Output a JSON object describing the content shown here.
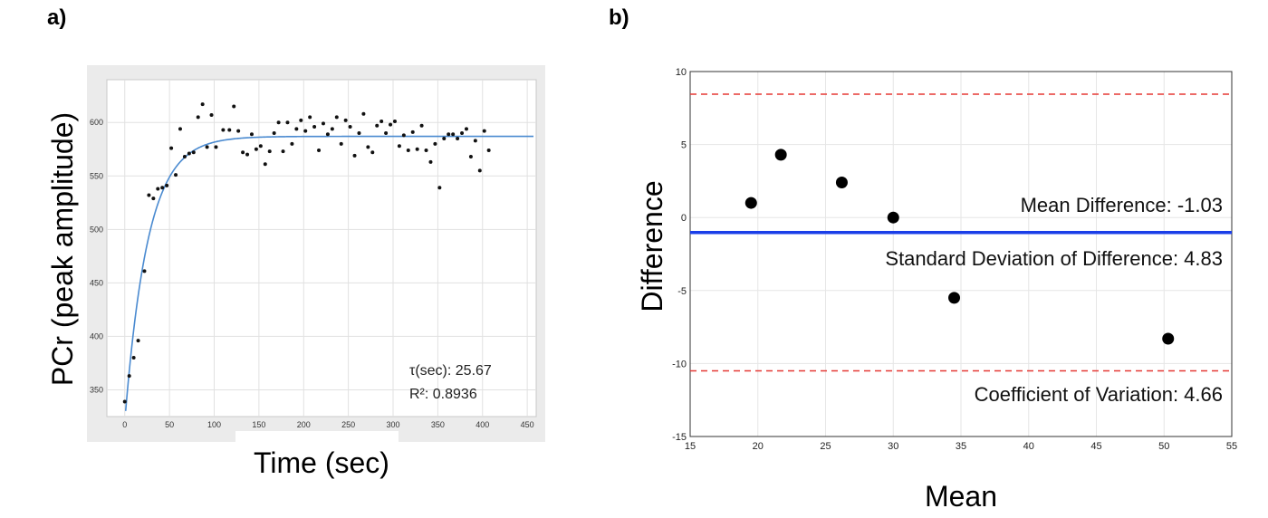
{
  "chart_data": [
    {
      "panel_label": "a)",
      "type": "scatter",
      "xlabel": "Time (sec)",
      "ylabel": "PCr (peak amplitude)",
      "xlim": [
        -20,
        460
      ],
      "ylim": [
        325,
        640
      ],
      "x_ticks": [
        "0",
        "50",
        "100",
        "150",
        "200",
        "250",
        "300",
        "350",
        "400",
        "450"
      ],
      "y_ticks": [
        "350",
        "400",
        "450",
        "500",
        "550",
        "600"
      ],
      "grid": true,
      "annotations": {
        "tau": "τ(sec): 25.67",
        "r2": "R²: 0.8936"
      },
      "fit_params": {
        "A0": 320,
        "Ainf": 587,
        "tau": 25.67
      },
      "points": [
        [
          0,
          339
        ],
        [
          5,
          363
        ],
        [
          10,
          380
        ],
        [
          15,
          396
        ],
        [
          22,
          461
        ],
        [
          27,
          532
        ],
        [
          32,
          529
        ],
        [
          37,
          538
        ],
        [
          42,
          539
        ],
        [
          47,
          541
        ],
        [
          52,
          576
        ],
        [
          57,
          551
        ],
        [
          62,
          594
        ],
        [
          67,
          568
        ],
        [
          72,
          571
        ],
        [
          77,
          572
        ],
        [
          82,
          605
        ],
        [
          87,
          617
        ],
        [
          92,
          577
        ],
        [
          97,
          607
        ],
        [
          102,
          577
        ],
        [
          110,
          593
        ],
        [
          117,
          593
        ],
        [
          122,
          615
        ],
        [
          127,
          592
        ],
        [
          132,
          572
        ],
        [
          137,
          570
        ],
        [
          142,
          589
        ],
        [
          147,
          575
        ],
        [
          152,
          578
        ],
        [
          157,
          561
        ],
        [
          162,
          573
        ],
        [
          167,
          590
        ],
        [
          172,
          600
        ],
        [
          177,
          573
        ],
        [
          182,
          600
        ],
        [
          187,
          580
        ],
        [
          192,
          594
        ],
        [
          197,
          602
        ],
        [
          202,
          592
        ],
        [
          207,
          605
        ],
        [
          212,
          596
        ],
        [
          217,
          574
        ],
        [
          222,
          599
        ],
        [
          227,
          589
        ],
        [
          232,
          594
        ],
        [
          237,
          605
        ],
        [
          242,
          580
        ],
        [
          247,
          602
        ],
        [
          252,
          596
        ],
        [
          257,
          569
        ],
        [
          262,
          590
        ],
        [
          267,
          608
        ],
        [
          272,
          577
        ],
        [
          277,
          572
        ],
        [
          282,
          597
        ],
        [
          287,
          601
        ],
        [
          292,
          590
        ],
        [
          297,
          598
        ],
        [
          302,
          601
        ],
        [
          307,
          578
        ],
        [
          312,
          588
        ],
        [
          317,
          574
        ],
        [
          322,
          591
        ],
        [
          327,
          575
        ],
        [
          332,
          597
        ],
        [
          337,
          574
        ],
        [
          342,
          563
        ],
        [
          347,
          580
        ],
        [
          352,
          539
        ],
        [
          357,
          585
        ],
        [
          362,
          589
        ],
        [
          367,
          589
        ],
        [
          372,
          585
        ],
        [
          377,
          590
        ],
        [
          382,
          594
        ],
        [
          387,
          568
        ],
        [
          392,
          583
        ],
        [
          397,
          555
        ],
        [
          402,
          592
        ],
        [
          407,
          574
        ]
      ]
    },
    {
      "panel_label": "b)",
      "type": "scatter",
      "xlabel": "Mean",
      "ylabel": "Difference",
      "xlim": [
        15,
        55
      ],
      "ylim": [
        -15,
        10
      ],
      "x_ticks": [
        "15",
        "20",
        "25",
        "30",
        "35",
        "40",
        "45",
        "50",
        "55"
      ],
      "y_ticks": [
        "-15",
        "-10",
        "-5",
        "0",
        "5",
        "10"
      ],
      "grid": true,
      "points": [
        [
          19.5,
          1.0
        ],
        [
          21.7,
          4.3
        ],
        [
          26.2,
          2.4
        ],
        [
          30.0,
          0.0
        ],
        [
          34.5,
          -5.5
        ],
        [
          50.3,
          -8.3
        ]
      ],
      "mean_line": -1.03,
      "upper_limit": 8.45,
      "lower_limit": -10.5,
      "annotations": {
        "mean_diff": "Mean Difference: -1.03",
        "sd_diff": "Standard Deviation of Difference: 4.83",
        "cv": "Coefficient of Variation: 4.66"
      },
      "colors": {
        "mean_line": "#1a3ee8",
        "limit_lines": "#e53935",
        "points": "#000000"
      }
    }
  ]
}
